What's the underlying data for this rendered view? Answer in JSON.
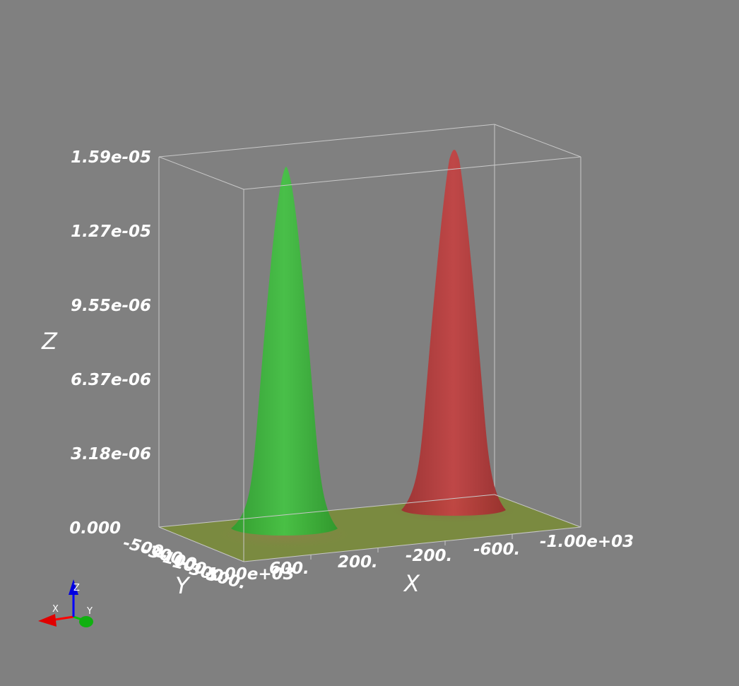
{
  "axes": {
    "z_title": "Z",
    "x_title": "X",
    "y_title": "Y",
    "z_ticks": [
      "1.59e-05",
      "1.27e-05",
      "9.55e-06",
      "6.37e-06",
      "3.18e-06",
      "0.000"
    ],
    "x_ticks": [
      "1.00e+03",
      "600.",
      "200.",
      "-200.",
      "-600.",
      "-1.00e+03"
    ],
    "y_ticks": [
      "-500.",
      "-300.",
      "-100.",
      "100.",
      "300.",
      "500."
    ]
  },
  "surfaces": [
    {
      "name": "green-peak",
      "color": "#3bb53b",
      "peak_z": 1.54e-05
    },
    {
      "name": "red-peak",
      "color": "#b53b3b",
      "peak_z": 1.59e-05
    }
  ],
  "orientation_widget": {
    "x_label": "X",
    "y_label": "Y",
    "z_label": "Z",
    "x_color": "#ff0000",
    "y_color": "#00c800",
    "z_color": "#0000ff"
  },
  "colors": {
    "background": "#808080",
    "floor": "#7a8a40"
  }
}
